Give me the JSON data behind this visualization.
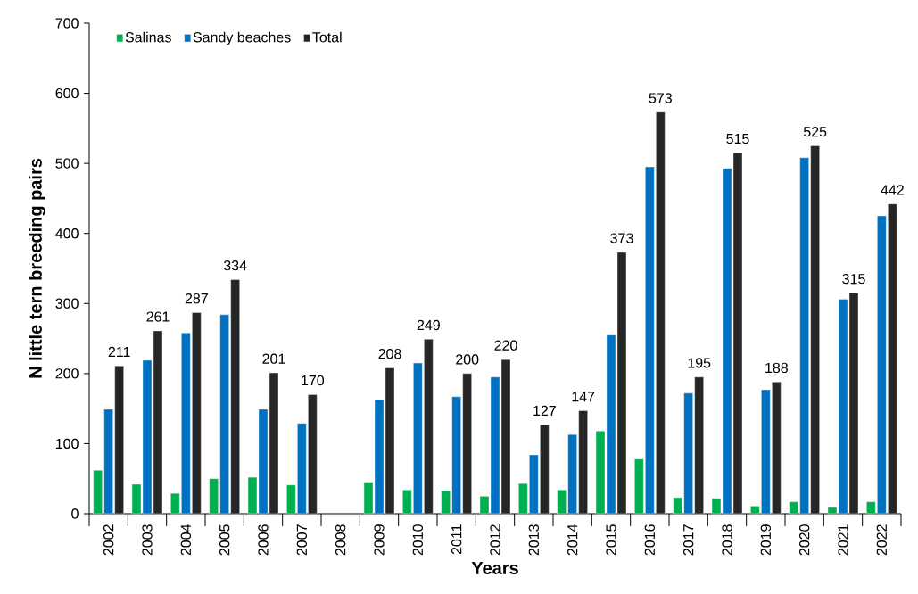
{
  "chart_data": {
    "type": "bar",
    "xlabel": "Years",
    "ylabel": "N little tern breeding pairs",
    "categories": [
      "2002",
      "2003",
      "2004",
      "2005",
      "2006",
      "2007",
      "2008",
      "2009",
      "2010",
      "2011",
      "2012",
      "2013",
      "2014",
      "2015",
      "2016",
      "2017",
      "2018",
      "2019",
      "2020",
      "2021",
      "2022"
    ],
    "series": [
      {
        "name": "Salinas",
        "color": "#00b050",
        "values": [
          62,
          42,
          29,
          50,
          52,
          41,
          null,
          45,
          34,
          33,
          25,
          43,
          34,
          118,
          78,
          23,
          22,
          11,
          17,
          9,
          17
        ]
      },
      {
        "name": "Sandy beaches",
        "color": "#0070c0",
        "values": [
          149,
          219,
          258,
          284,
          149,
          129,
          null,
          163,
          215,
          167,
          195,
          84,
          113,
          255,
          495,
          172,
          493,
          177,
          508,
          306,
          425
        ]
      },
      {
        "name": "Total",
        "color": "#262626",
        "values": [
          211,
          261,
          287,
          334,
          201,
          170,
          null,
          208,
          249,
          200,
          220,
          127,
          147,
          373,
          573,
          195,
          515,
          188,
          525,
          315,
          442
        ],
        "value_labels": [
          "211",
          "261",
          "287",
          "334",
          "201",
          "170",
          null,
          "208",
          "249",
          "200",
          "220",
          "127",
          "147",
          "373",
          "573",
          "195",
          "515",
          "188",
          "525",
          "315",
          "442"
        ]
      }
    ],
    "ylim": [
      0,
      700
    ],
    "yticks": [
      0,
      100,
      200,
      300,
      400,
      500,
      600,
      700
    ],
    "grid": false,
    "legend": "top left"
  }
}
